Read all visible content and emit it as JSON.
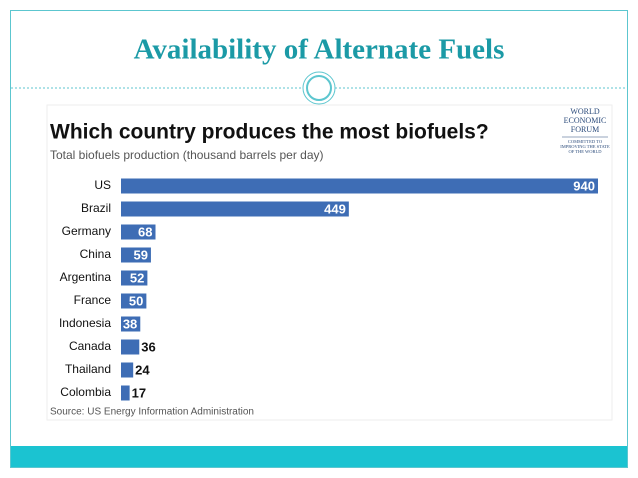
{
  "slide": {
    "title": "Availability of Alternate Fuels"
  },
  "logo": {
    "lines": [
      "WORLD",
      "ECONOMIC",
      "FORUM"
    ],
    "tagline": [
      "COMMITTED TO",
      "IMPROVING THE STATE",
      "OF THE WORLD"
    ]
  },
  "chart_data": {
    "type": "bar",
    "orientation": "horizontal",
    "title": "Which country produces the most biofuels?",
    "subtitle": "Total biofuels production (thousand barrels per day)",
    "categories": [
      "US",
      "Brazil",
      "Germany",
      "China",
      "Argentina",
      "France",
      "Indonesia",
      "Canada",
      "Thailand",
      "Colombia"
    ],
    "values": [
      940,
      449,
      68,
      59,
      52,
      50,
      38,
      36,
      24,
      17
    ],
    "color": "#3e6db5",
    "source": "Source: US Energy Information Administration"
  }
}
